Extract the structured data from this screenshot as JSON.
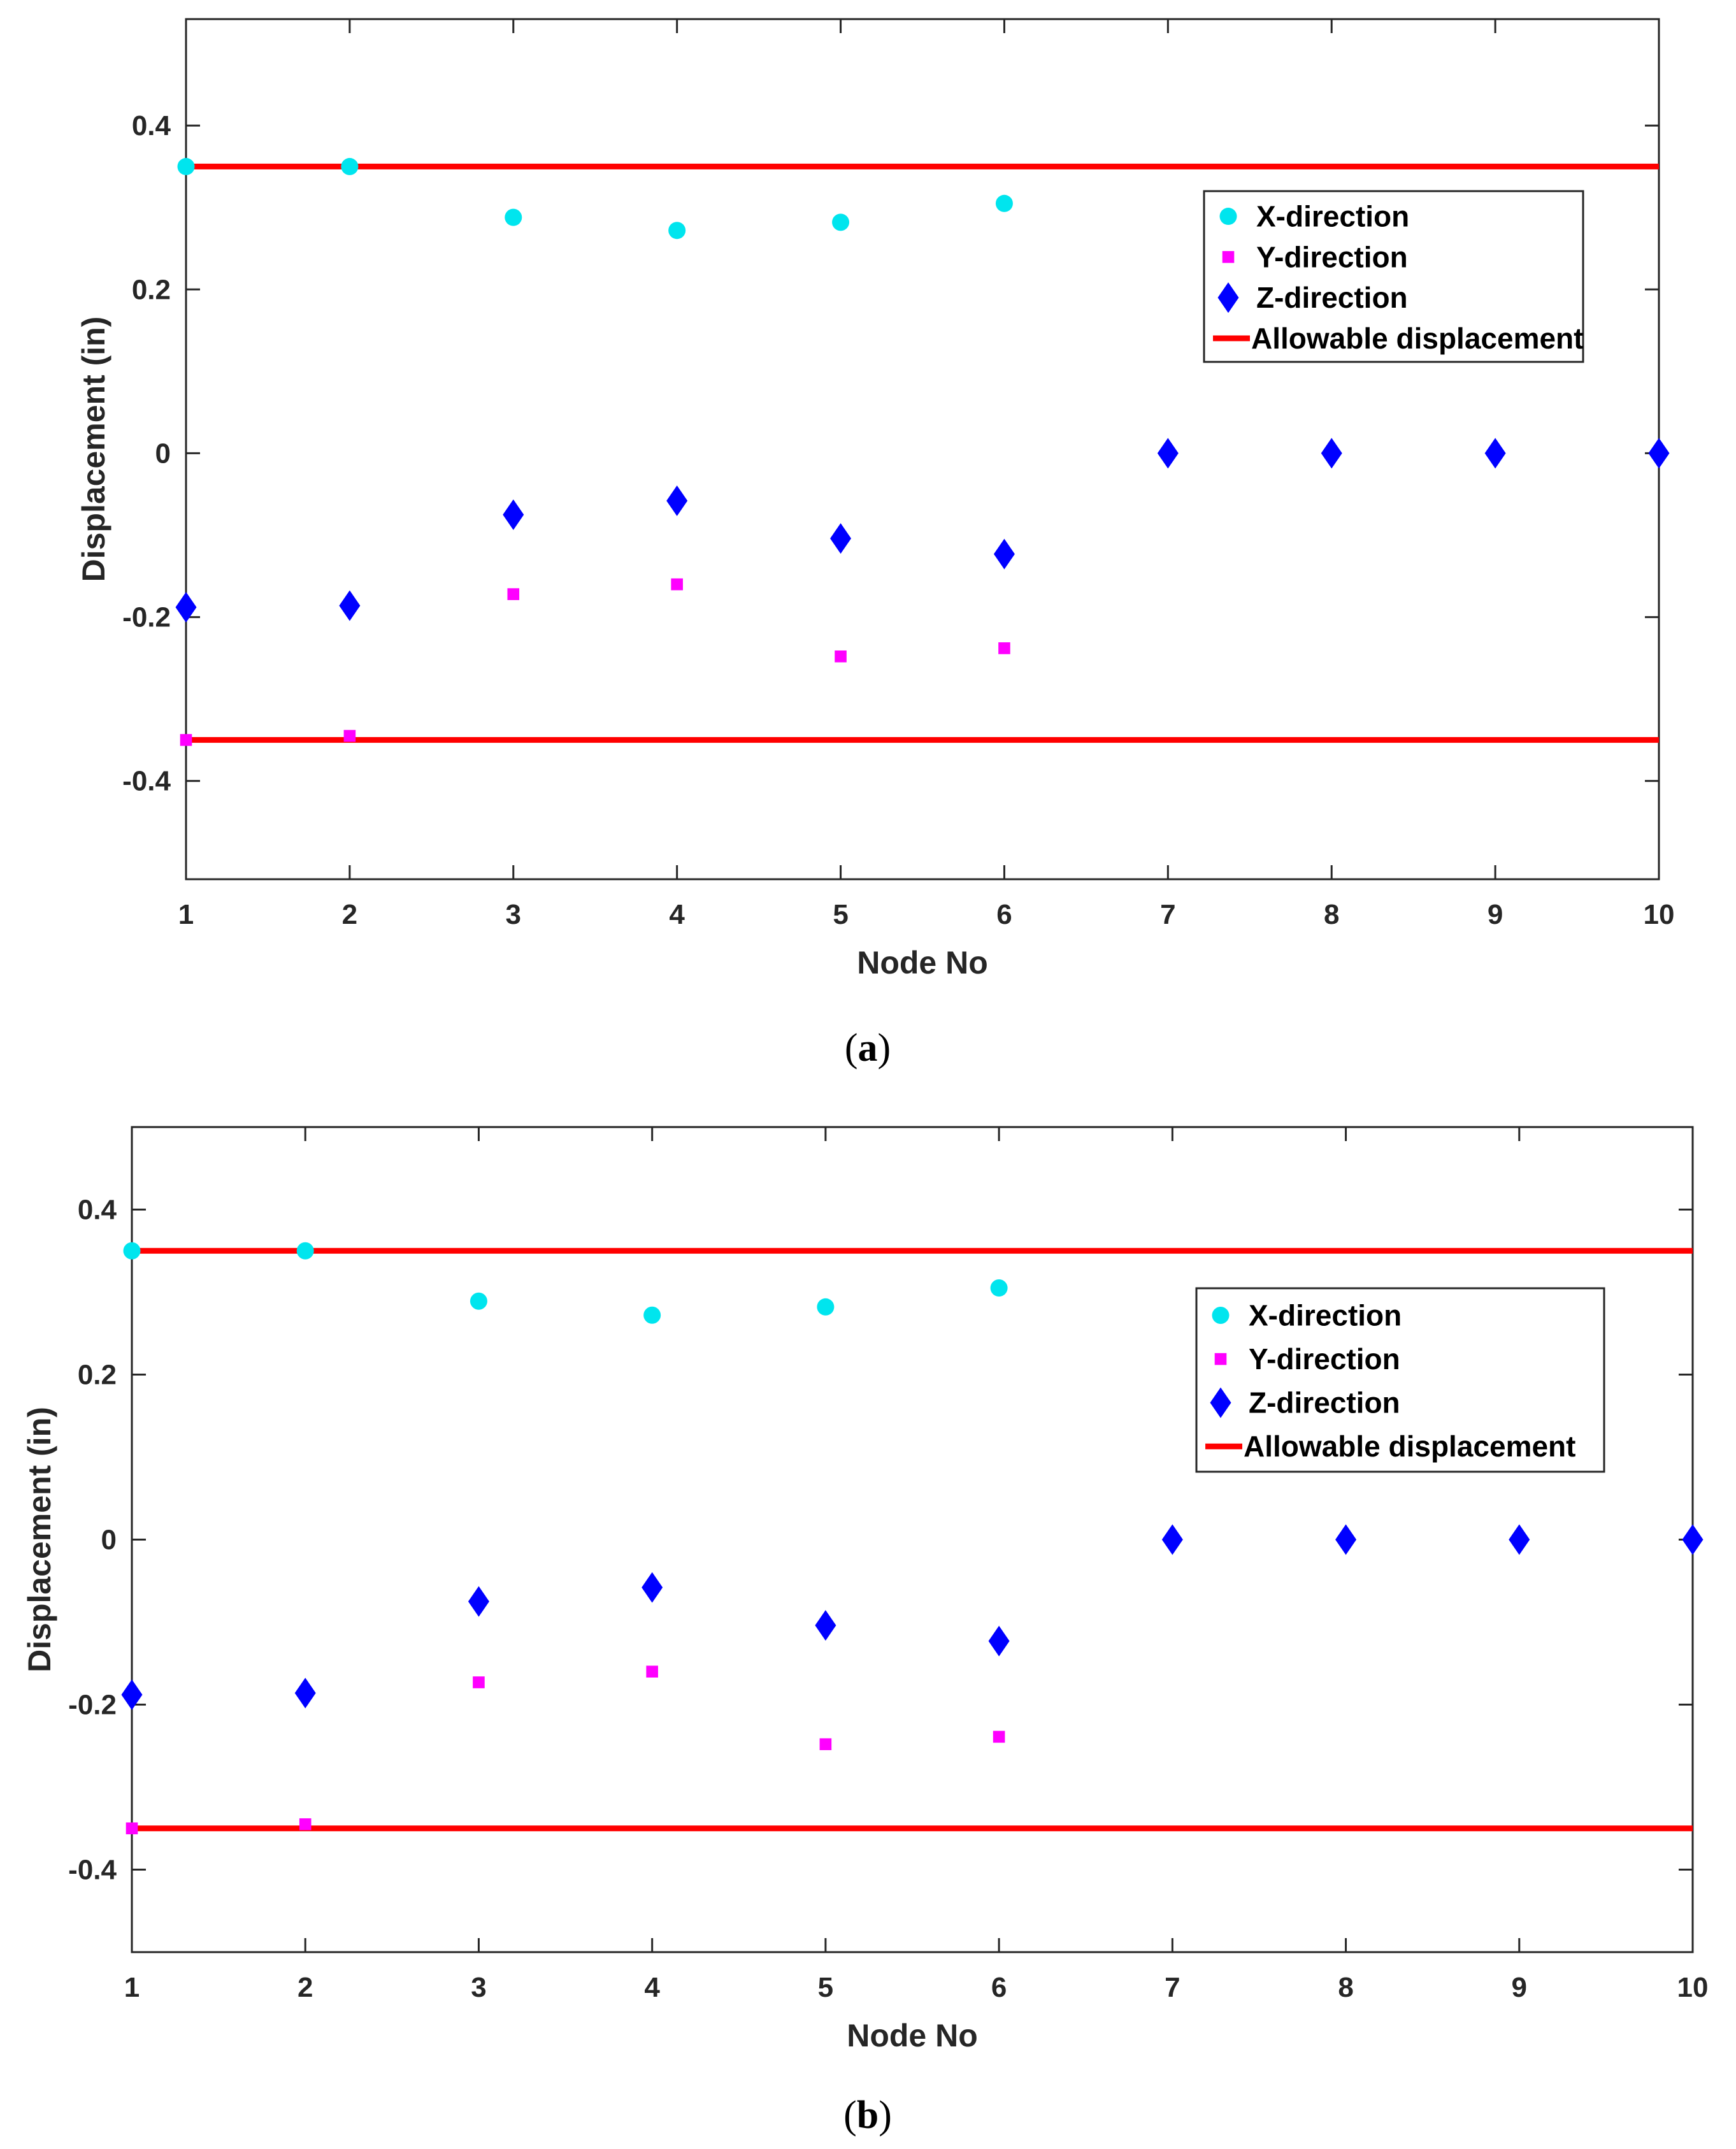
{
  "chart_data": [
    {
      "type": "scatter",
      "panel_label": "a",
      "xlabel": "Node No",
      "ylabel": "Displacement (in)",
      "xlim": [
        1,
        10
      ],
      "ylim": [
        -0.52,
        0.53
      ],
      "xticks": [
        1,
        2,
        3,
        4,
        5,
        6,
        7,
        8,
        9,
        10
      ],
      "yticks": [
        -0.4,
        -0.2,
        0,
        0.2,
        0.4
      ],
      "ytick_labels": [
        "-0.4",
        "-0.2",
        "0",
        "0.2",
        "0.4"
      ],
      "legend_position": "upper-right",
      "series": [
        {
          "name": "X-direction",
          "marker": "circle",
          "color": "#00e5ee",
          "x": [
            1,
            2,
            3,
            4,
            5,
            6,
            7,
            8,
            9,
            10
          ],
          "y": [
            0.35,
            0.35,
            0.288,
            0.272,
            0.282,
            0.305,
            0,
            0,
            0,
            0
          ]
        },
        {
          "name": "Y-direction",
          "marker": "square",
          "color": "#ff00ff",
          "x": [
            1,
            2,
            3,
            4,
            5,
            6,
            7,
            8,
            9,
            10
          ],
          "y": [
            -0.35,
            -0.345,
            -0.172,
            -0.16,
            -0.248,
            -0.238,
            0,
            0,
            0,
            0
          ]
        },
        {
          "name": "Z-direction",
          "marker": "diamond",
          "color": "#0000ff",
          "x": [
            1,
            2,
            3,
            4,
            5,
            6,
            7,
            8,
            9,
            10
          ],
          "y": [
            -0.188,
            -0.186,
            -0.075,
            -0.058,
            -0.104,
            -0.123,
            0,
            0,
            0,
            0
          ]
        }
      ],
      "reference_lines": [
        {
          "name": "Allowable displacement",
          "color": "#ff0000",
          "y": [
            0.35,
            -0.35
          ]
        }
      ]
    },
    {
      "type": "scatter",
      "panel_label": "b",
      "xlabel": "Node No",
      "ylabel": "Displacement (in)",
      "xlim": [
        1,
        10
      ],
      "ylim": [
        -0.5,
        0.5
      ],
      "xticks": [
        1,
        2,
        3,
        4,
        5,
        6,
        7,
        8,
        9,
        10
      ],
      "yticks": [
        -0.4,
        -0.2,
        0,
        0.2,
        0.4
      ],
      "ytick_labels": [
        "-0.4",
        "-0.2",
        "0",
        "0.2",
        "0.4"
      ],
      "legend_position": "upper-right",
      "series": [
        {
          "name": "X-direction",
          "marker": "circle",
          "color": "#00e5ee",
          "x": [
            1,
            2,
            3,
            4,
            5,
            6,
            7,
            8,
            9,
            10
          ],
          "y": [
            0.35,
            0.35,
            0.289,
            0.272,
            0.282,
            0.305,
            0,
            0,
            0,
            0
          ]
        },
        {
          "name": "Y-direction",
          "marker": "square",
          "color": "#ff00ff",
          "x": [
            1,
            2,
            3,
            4,
            5,
            6,
            7,
            8,
            9,
            10
          ],
          "y": [
            -0.35,
            -0.345,
            -0.173,
            -0.16,
            -0.248,
            -0.239,
            0,
            0,
            0,
            0
          ]
        },
        {
          "name": "Z-direction",
          "marker": "diamond",
          "color": "#0000ff",
          "x": [
            1,
            2,
            3,
            4,
            5,
            6,
            7,
            8,
            9,
            10
          ],
          "y": [
            -0.188,
            -0.186,
            -0.075,
            -0.058,
            -0.104,
            -0.123,
            0,
            0,
            0,
            0
          ]
        }
      ],
      "reference_lines": [
        {
          "name": "Allowable displacement",
          "color": "#ff0000",
          "y": [
            0.35,
            -0.35
          ]
        }
      ]
    }
  ]
}
